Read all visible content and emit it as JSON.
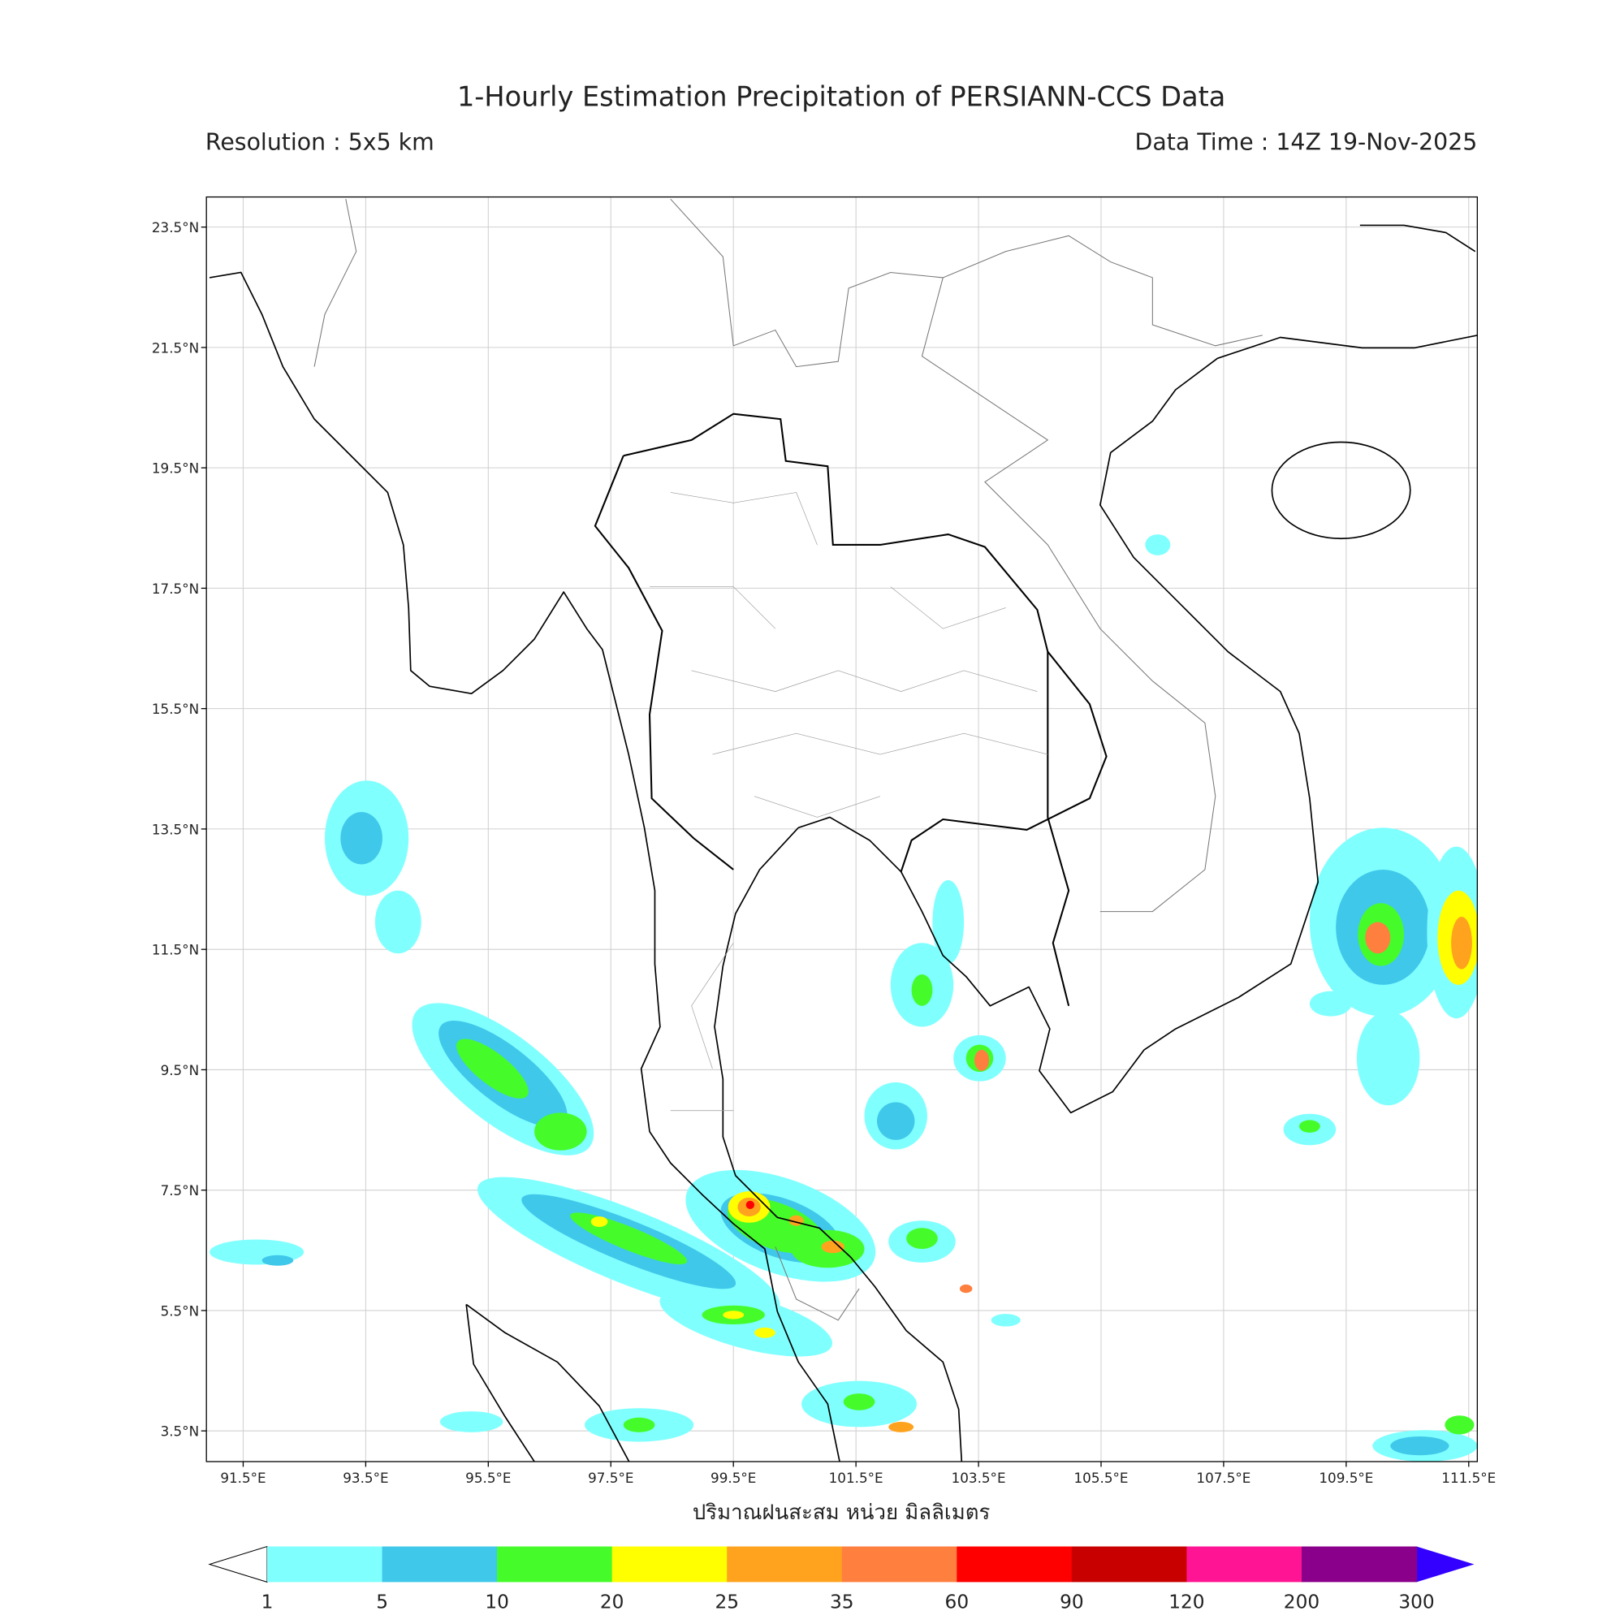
{
  "title": "1-Hourly Estimation Precipitation of PERSIANN-CCS Data",
  "resolution": "Resolution : 5x5 km",
  "data_time": "Data Time : 14Z 19-Nov-2025",
  "map": {
    "lon_range": [
      90.9,
      111.64
    ],
    "lat_range": [
      2.99,
      24.0
    ],
    "lon_ticks": [
      {
        "value": 91.5,
        "label": "91.5°E"
      },
      {
        "value": 93.5,
        "label": "93.5°E"
      },
      {
        "value": 95.5,
        "label": "95.5°E"
      },
      {
        "value": 97.5,
        "label": "97.5°E"
      },
      {
        "value": 99.5,
        "label": "99.5°E"
      },
      {
        "value": 101.5,
        "label": "101.5°E"
      },
      {
        "value": 103.5,
        "label": "103.5°E"
      },
      {
        "value": 105.5,
        "label": "105.5°E"
      },
      {
        "value": 107.5,
        "label": "107.5°E"
      },
      {
        "value": 109.5,
        "label": "109.5°E"
      },
      {
        "value": 111.5,
        "label": "111.5°E"
      }
    ],
    "lat_ticks": [
      {
        "value": 3.5,
        "label": "3.5°N"
      },
      {
        "value": 5.5,
        "label": "5.5°N"
      },
      {
        "value": 7.5,
        "label": "7.5°N"
      },
      {
        "value": 9.5,
        "label": "9.5°N"
      },
      {
        "value": 11.5,
        "label": "11.5°N"
      },
      {
        "value": 13.5,
        "label": "13.5°N"
      },
      {
        "value": 15.5,
        "label": "15.5°N"
      },
      {
        "value": 17.5,
        "label": "17.5°N"
      },
      {
        "value": 19.5,
        "label": "19.5°N"
      },
      {
        "value": 21.5,
        "label": "21.5°N"
      },
      {
        "value": 23.5,
        "label": "23.5°N"
      }
    ],
    "xlabel": "ปริมาณฝนสะสม หน่วย มิลลิเมตร"
  },
  "colorbar": {
    "bounds": [
      1,
      5,
      10,
      20,
      25,
      35,
      60,
      90,
      120,
      200,
      300
    ],
    "colors": [
      "#80ffff",
      "#3fc8ea",
      "#45fc2a",
      "#ffff00",
      "#ffa31f",
      "#ff7f3f",
      "#ff0000",
      "#c80000",
      "#ff1493",
      "#8b008b"
    ],
    "under_color": "#ffffff",
    "over_color": "#3300ff"
  }
}
